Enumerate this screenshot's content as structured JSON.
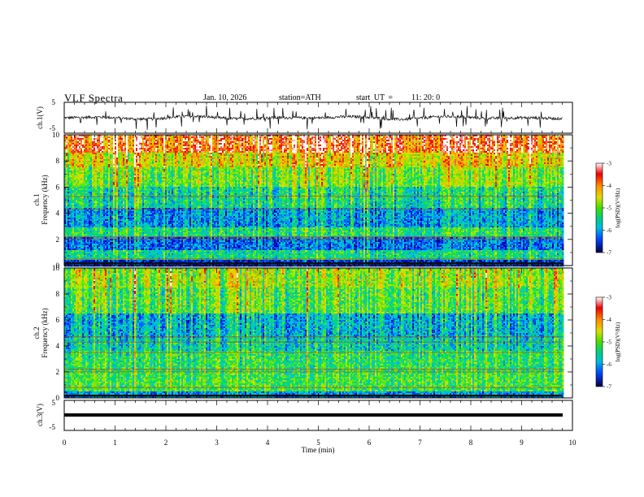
{
  "header": {
    "title": "VLF  Spectra",
    "date": "Jan. 10, 2026",
    "station": "station=ATH",
    "start_label": "start  UT  =",
    "start_value": "11: 20: 0"
  },
  "colors": {
    "colormap": [
      "#000033",
      "#0000cc",
      "#0066ff",
      "#00cccc",
      "#00dd66",
      "#66ee00",
      "#dddd00",
      "#ff8800",
      "#ee0000",
      "#ffffff"
    ]
  },
  "chart_data": [
    {
      "type": "line",
      "panel": "ch1-voltage",
      "ylabel": "ch.1(V)",
      "ylim": [
        -5,
        5
      ],
      "y_ticks": [
        "5",
        "-5"
      ],
      "xlim": [
        0,
        10
      ],
      "baseline_value": 0,
      "amplitude_range": [
        -1.8,
        1.8
      ],
      "x_end": 9.8
    },
    {
      "type": "heatmap",
      "panel": "ch1-spectrogram",
      "ylabel_top": "ch.1",
      "ylabel": "Frequency  (kHz)",
      "ylim": [
        0,
        10
      ],
      "y_ticks": [
        "0",
        "2",
        "4",
        "6",
        "8",
        "10"
      ],
      "xlim": [
        0,
        10
      ],
      "x_end": 9.8,
      "colorbar": {
        "label": "log(PSD)(V²/Hz)",
        "range": [
          -7,
          -3
        ],
        "ticks": [
          "-3",
          "-4",
          "-5",
          "-6",
          "-7"
        ]
      },
      "bands": [
        {
          "freq_range": [
            0,
            0.5
          ],
          "level": -6.3
        },
        {
          "freq_range": [
            0.5,
            1.2
          ],
          "level": -5.3
        },
        {
          "freq_range": [
            1.2,
            2.2
          ],
          "level": -6.0
        },
        {
          "freq_range": [
            2.2,
            3.0
          ],
          "level": -5.2
        },
        {
          "freq_range": [
            3.0,
            4.5
          ],
          "level": -5.8
        },
        {
          "freq_range": [
            4.5,
            6.0
          ],
          "level": -5.3
        },
        {
          "freq_range": [
            6.0,
            7.5
          ],
          "level": -4.8
        },
        {
          "freq_range": [
            7.5,
            8.6
          ],
          "level": -4.3
        },
        {
          "freq_range": [
            8.6,
            10.0
          ],
          "level": -3.6
        }
      ],
      "tone_lines_khz": [
        0.5,
        2.0,
        2.2,
        4.3,
        5.3
      ]
    },
    {
      "type": "heatmap",
      "panel": "ch2-spectrogram",
      "ylabel_top": "ch.2",
      "ylabel": "Frequency  (kHz)",
      "ylim": [
        0,
        10
      ],
      "y_ticks": [
        "0",
        "2",
        "4",
        "6",
        "8",
        "10"
      ],
      "xlim": [
        0,
        10
      ],
      "x_end": 9.8,
      "colorbar": {
        "label": "log(PSD)(V²/Hz)",
        "range": [
          -7,
          -3
        ],
        "ticks": [
          "-3",
          "-4",
          "-5",
          "-6",
          "-7"
        ]
      },
      "bands": [
        {
          "freq_range": [
            0,
            0.5
          ],
          "level": -5.8
        },
        {
          "freq_range": [
            0.5,
            2.0
          ],
          "level": -5.0
        },
        {
          "freq_range": [
            2.0,
            3.6
          ],
          "level": -5.1
        },
        {
          "freq_range": [
            3.6,
            4.6
          ],
          "level": -5.4
        },
        {
          "freq_range": [
            4.6,
            6.5
          ],
          "level": -5.6
        },
        {
          "freq_range": [
            6.5,
            8.5
          ],
          "level": -4.9
        },
        {
          "freq_range": [
            8.5,
            10.0
          ],
          "level": -4.6
        }
      ],
      "tone_lines_khz": [
        0.8,
        2.0,
        2.2,
        3.5,
        4.3,
        4.7
      ]
    },
    {
      "type": "line",
      "panel": "ch3-voltage",
      "ylabel": "ch.3(V)",
      "ylim": [
        -5,
        5
      ],
      "y_ticks": [
        "5",
        "-5"
      ],
      "xlim": [
        0,
        10
      ],
      "constant_value": 0,
      "x_end": 9.8,
      "xlabel": "Time  (min)",
      "x_ticks": [
        "0",
        "1",
        "2",
        "3",
        "4",
        "5",
        "6",
        "7",
        "8",
        "9",
        "10"
      ]
    }
  ]
}
